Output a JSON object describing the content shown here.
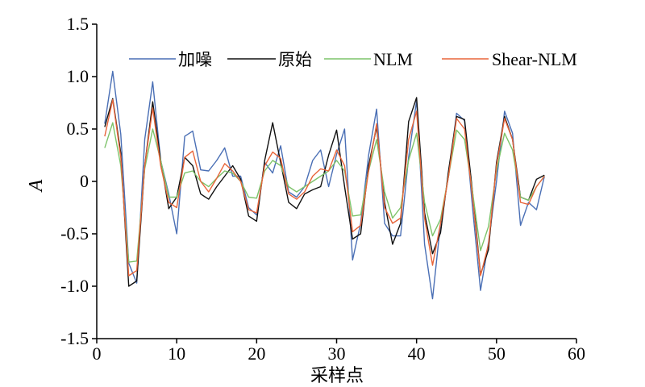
{
  "chart_data": {
    "type": "line",
    "title": "",
    "xlabel": "采样点",
    "ylabel": "A",
    "xlim": [
      0,
      60
    ],
    "ylim": [
      -1.5,
      1.5
    ],
    "x_ticks": [
      "0",
      "10",
      "20",
      "30",
      "40",
      "50",
      "60"
    ],
    "y_ticks": [
      "1.5",
      "1.0",
      "0.5",
      "0",
      "-0.5",
      "-1.0",
      "-1.5"
    ],
    "legend_position": "top",
    "x": [
      1,
      2,
      3,
      4,
      5,
      6,
      7,
      8,
      9,
      10,
      11,
      12,
      13,
      14,
      15,
      16,
      17,
      18,
      19,
      20,
      21,
      22,
      23,
      24,
      25,
      26,
      27,
      28,
      29,
      30,
      31,
      32,
      33,
      34,
      35,
      36,
      37,
      38,
      39,
      40,
      41,
      42,
      43,
      44,
      45,
      46,
      47,
      48,
      49,
      50,
      51,
      52,
      53,
      54,
      55,
      56
    ],
    "series": [
      {
        "name": "加噪",
        "color": "#4a6fb5",
        "values": [
          0.55,
          1.05,
          0.45,
          -0.78,
          -0.97,
          0.4,
          0.95,
          0.2,
          -0.12,
          -0.5,
          0.43,
          0.48,
          0.11,
          0.1,
          0.2,
          0.32,
          0.05,
          0.05,
          -0.25,
          -0.32,
          0.18,
          0.08,
          0.34,
          -0.1,
          -0.15,
          -0.05,
          0.2,
          0.3,
          -0.05,
          0.26,
          0.5,
          -0.75,
          -0.4,
          0.25,
          0.69,
          -0.4,
          -0.52,
          -0.52,
          0.23,
          0.77,
          -0.6,
          -1.12,
          -0.4,
          0.05,
          0.65,
          0.58,
          -0.25,
          -1.04,
          -0.58,
          0.0,
          0.67,
          0.46,
          -0.42,
          -0.2,
          -0.27,
          0.05
        ]
      },
      {
        "name": "原始",
        "color": "#111111",
        "values": [
          0.52,
          0.79,
          0.27,
          -1.0,
          -0.95,
          0.15,
          0.76,
          0.2,
          -0.26,
          -0.15,
          0.23,
          0.15,
          -0.12,
          -0.17,
          -0.05,
          0.05,
          0.15,
          0.02,
          -0.33,
          -0.38,
          0.2,
          0.56,
          0.18,
          -0.2,
          -0.26,
          -0.12,
          -0.08,
          -0.05,
          0.25,
          0.49,
          -0.05,
          -0.55,
          -0.5,
          0.15,
          0.52,
          -0.2,
          -0.6,
          -0.4,
          0.57,
          0.8,
          -0.3,
          -0.69,
          -0.49,
          0.1,
          0.62,
          0.59,
          -0.1,
          -0.89,
          -0.65,
          0.18,
          0.62,
          0.4,
          -0.15,
          -0.18,
          0.02,
          0.06
        ]
      },
      {
        "name": "NLM",
        "color": "#7dc36a",
        "values": [
          0.32,
          0.56,
          0.15,
          -0.77,
          -0.76,
          0.12,
          0.5,
          0.2,
          -0.15,
          -0.15,
          0.08,
          0.1,
          0.0,
          -0.05,
          0.03,
          0.1,
          0.08,
          0.0,
          -0.15,
          -0.16,
          0.1,
          0.2,
          0.15,
          -0.05,
          -0.1,
          -0.05,
          0.0,
          0.05,
          0.1,
          0.2,
          0.1,
          -0.33,
          -0.32,
          0.1,
          0.4,
          -0.1,
          -0.35,
          -0.25,
          0.2,
          0.46,
          -0.2,
          -0.52,
          -0.36,
          0.05,
          0.49,
          0.4,
          -0.1,
          -0.66,
          -0.43,
          0.1,
          0.46,
          0.3,
          -0.15,
          -0.18,
          -0.05,
          0.05
        ]
      },
      {
        "name": "Shear-NLM",
        "color": "#e8653a",
        "values": [
          0.43,
          0.78,
          0.23,
          -0.9,
          -0.85,
          0.15,
          0.7,
          0.15,
          -0.2,
          -0.25,
          0.23,
          0.29,
          0.0,
          -0.1,
          0.03,
          0.17,
          0.1,
          0.0,
          -0.27,
          -0.3,
          0.15,
          0.28,
          0.22,
          -0.12,
          -0.17,
          -0.1,
          0.05,
          0.12,
          0.1,
          0.3,
          0.15,
          -0.48,
          -0.42,
          0.1,
          0.55,
          -0.25,
          -0.4,
          -0.35,
          0.4,
          0.67,
          -0.35,
          -0.8,
          -0.4,
          0.05,
          0.6,
          0.5,
          -0.15,
          -0.9,
          -0.6,
          0.15,
          0.6,
          0.4,
          -0.2,
          -0.22,
          -0.05,
          0.05
        ]
      }
    ]
  }
}
